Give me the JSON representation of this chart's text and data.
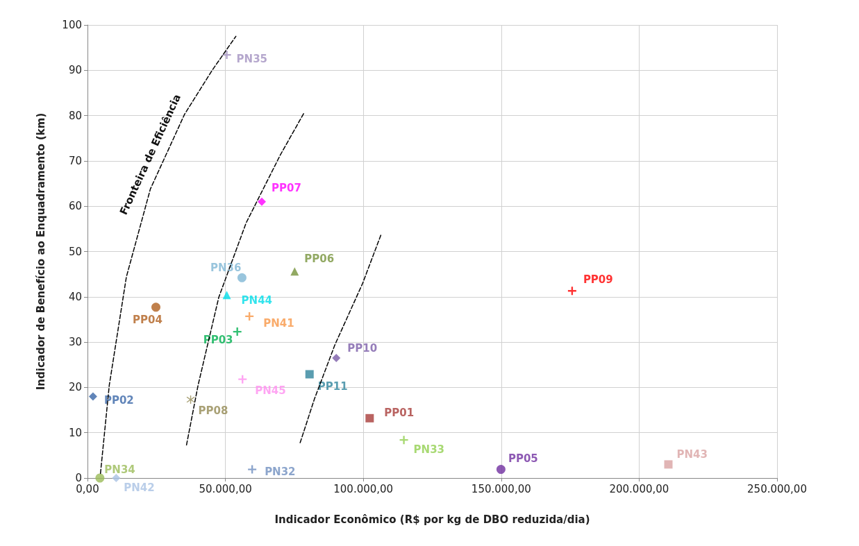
{
  "chart_data": {
    "type": "scatter",
    "xlabel": "Indicador Econômico (R$ por kg de DBO reduzida/dia)",
    "ylabel": "Indicador de Benefício ao Enquadramento (km)",
    "xlim": [
      0,
      250000
    ],
    "xticks": [
      {
        "value": 0,
        "label": "0,00"
      },
      {
        "value": 50000,
        "label": "50.000,00"
      },
      {
        "value": 100000,
        "label": "100.000,00"
      },
      {
        "value": 150000,
        "label": "150.000,00"
      },
      {
        "value": 200000,
        "label": "200.000,00"
      },
      {
        "value": 250000,
        "label": "250.000,00"
      }
    ],
    "ylim": [
      0,
      100
    ],
    "yticks": [
      0,
      10,
      20,
      30,
      40,
      50,
      60,
      70,
      80,
      90,
      100
    ],
    "grid": true,
    "legend": false,
    "annotations": [
      "Fronteira de Eficiência"
    ],
    "series": [
      {
        "name": "PP02",
        "color": "#3a66a8",
        "marker": "diamond",
        "x": [
          2000
        ],
        "values": [
          18
        ]
      },
      {
        "name": "PN34",
        "color": "#9bbb59",
        "marker": "circle",
        "x": [
          4500
        ],
        "values": [
          0
        ]
      },
      {
        "name": "PN42",
        "color": "#a9c2e3",
        "marker": "diamond",
        "x": [
          10400
        ],
        "values": [
          0
        ]
      },
      {
        "name": "PP04",
        "color": "#b0601f",
        "marker": "circle",
        "x": [
          24800
        ],
        "values": [
          37.7
        ]
      },
      {
        "name": "PP08",
        "color": "#948a54",
        "marker": "star",
        "x": [
          37400
        ],
        "values": [
          17.3
        ]
      },
      {
        "name": "PN35",
        "color": "#a391c0",
        "marker": "cross",
        "x": [
          50500
        ],
        "values": [
          93.4
        ]
      },
      {
        "name": "PN44",
        "color": "#00dde8",
        "marker": "triangle",
        "x": [
          50500
        ],
        "values": [
          40.4
        ]
      },
      {
        "name": "PN36",
        "color": "#7fb6d5",
        "marker": "circle",
        "x": [
          56000
        ],
        "values": [
          44.2
        ]
      },
      {
        "name": "PN45",
        "color": "#ff8ff0",
        "marker": "cross",
        "x": [
          56200
        ],
        "values": [
          21.8
        ]
      },
      {
        "name": "PP03",
        "color": "#00b050",
        "marker": "cross",
        "x": [
          54300
        ],
        "values": [
          32.3
        ]
      },
      {
        "name": "PN41",
        "color": "#f79646",
        "marker": "cross",
        "x": [
          58700
        ],
        "values": [
          35.7
        ]
      },
      {
        "name": "PN32",
        "color": "#6f8fbf",
        "marker": "cross",
        "x": [
          59700
        ],
        "values": [
          1.9
        ]
      },
      {
        "name": "PP07",
        "color": "#ff00ff",
        "marker": "diamond",
        "x": [
          63200
        ],
        "values": [
          61
        ]
      },
      {
        "name": "PP06",
        "color": "#77933c",
        "marker": "triangle",
        "x": [
          75100
        ],
        "values": [
          45.6
        ]
      },
      {
        "name": "PP11",
        "color": "#31859c",
        "marker": "square",
        "x": [
          80500
        ],
        "values": [
          22.9
        ]
      },
      {
        "name": "PP10",
        "color": "#7a5ca8",
        "marker": "diamond",
        "x": [
          90200
        ],
        "values": [
          26.5
        ]
      },
      {
        "name": "PP01",
        "color": "#a83c3a",
        "marker": "square",
        "x": [
          102300
        ],
        "values": [
          13.2
        ]
      },
      {
        "name": "PN33",
        "color": "#92d050",
        "marker": "cross",
        "x": [
          114700
        ],
        "values": [
          8.4
        ]
      },
      {
        "name": "PP05",
        "color": "#7030a0",
        "marker": "circle",
        "x": [
          149900
        ],
        "values": [
          1.9
        ]
      },
      {
        "name": "PP09",
        "color": "#ff0000",
        "marker": "cross",
        "x": [
          175700
        ],
        "values": [
          41.3
        ]
      },
      {
        "name": "PN43",
        "color": "#d9a3a3",
        "marker": "square",
        "x": [
          210600
        ],
        "values": [
          3
        ]
      },
      {
        "type": "line",
        "color": "#000000",
        "line_style": "dashed",
        "marker": "none",
        "x": [
          4700,
          7900,
          14100,
          22800,
          35200,
          45200,
          53800
        ],
        "values": [
          1,
          20.5,
          44.4,
          63.8,
          80.3,
          90,
          97.5
        ]
      },
      {
        "type": "line",
        "color": "#000000",
        "line_style": "dashed",
        "marker": "none",
        "x": [
          35900,
          40100,
          47600,
          57500,
          69900,
          78600
        ],
        "values": [
          7.3,
          20.5,
          39.9,
          56.3,
          71.3,
          80.7
        ]
      },
      {
        "type": "line",
        "color": "#000000",
        "line_style": "dashed",
        "marker": "none",
        "x": [
          77100,
          82300,
          89700,
          99700,
          106600
        ],
        "values": [
          7.8,
          17.5,
          29.4,
          42.9,
          54
        ]
      }
    ]
  }
}
